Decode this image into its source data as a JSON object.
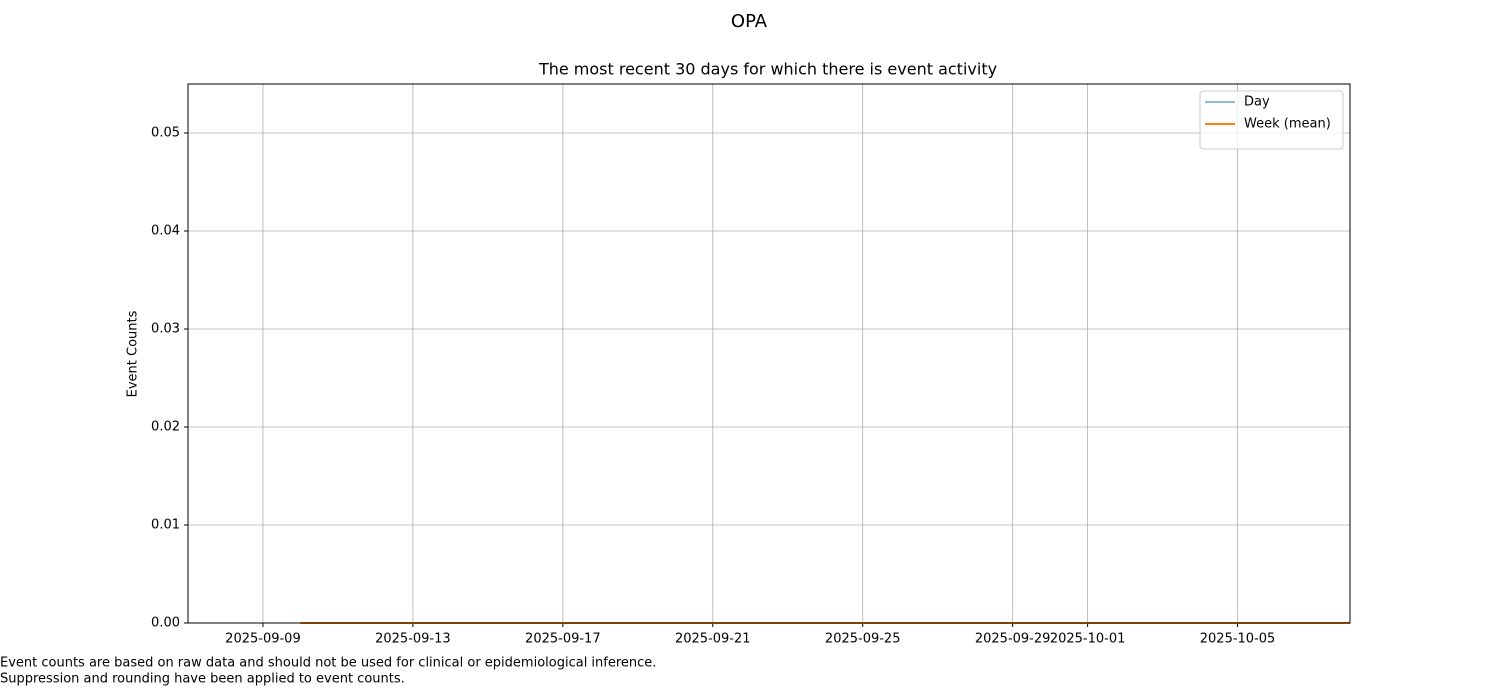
{
  "chart_data": {
    "type": "line",
    "suptitle": "OPA",
    "title": "The most recent 30 days for which there is event activity",
    "ylabel": "Event Counts",
    "xlim": [
      "2025-09-07",
      "2025-10-08"
    ],
    "xticks": [
      "2025-09-09",
      "2025-09-13",
      "2025-09-17",
      "2025-09-21",
      "2025-09-25",
      "2025-09-29",
      "2025-10-01",
      "2025-10-05"
    ],
    "ylim": [
      0,
      0.055
    ],
    "yticks": [
      {
        "value": 0,
        "label": "0.00"
      },
      0.01,
      0.02,
      0.03,
      0.04,
      0.05
    ],
    "grid": true,
    "legend": "upper right",
    "series": [
      {
        "name": "Day",
        "color": "#1f77b4",
        "width": 1,
        "x": [
          "2025-09-07",
          "2025-09-08",
          "2025-09-09",
          "2025-09-10",
          "2025-09-11",
          "2025-09-12",
          "2025-09-13",
          "2025-09-14",
          "2025-09-15",
          "2025-09-16",
          "2025-09-17",
          "2025-09-18",
          "2025-09-19",
          "2025-09-20",
          "2025-09-21",
          "2025-09-22",
          "2025-09-23",
          "2025-09-24",
          "2025-09-25",
          "2025-09-26",
          "2025-09-27",
          "2025-09-28",
          "2025-09-29",
          "2025-09-30",
          "2025-10-01",
          "2025-10-02",
          "2025-10-03",
          "2025-10-04",
          "2025-10-05",
          "2025-10-06"
        ],
        "values": [
          0,
          0,
          0,
          0,
          0,
          0,
          0,
          0,
          0,
          0,
          0,
          0,
          0,
          0,
          0,
          0,
          0,
          0,
          0,
          0,
          0,
          0,
          0,
          0,
          0,
          0,
          0,
          0,
          0,
          0
        ]
      },
      {
        "name": "Week (mean)",
        "color": "#ff7f0e",
        "width": 2,
        "x": [
          "2025-09-10",
          "2025-09-17",
          "2025-09-24",
          "2025-10-01",
          "2025-10-08"
        ],
        "values": [
          0,
          0,
          0,
          0,
          0
        ]
      }
    ],
    "footnotes": [
      "Event counts are based on raw data and should not be used for clinical or epidemiological inference.",
      "Suppression and rounding have been applied to event counts."
    ]
  }
}
